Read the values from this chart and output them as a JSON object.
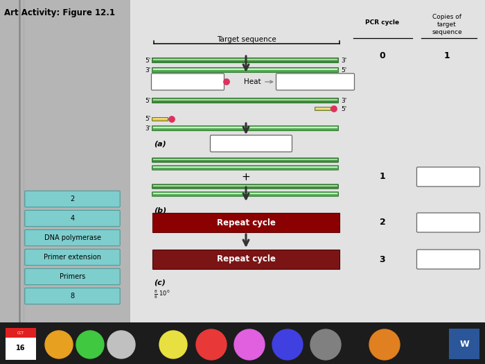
{
  "title": "Art Activity: Figure 12.1",
  "bg_color": "#d0cece",
  "sidebar_color": "#7ecece",
  "sidebar_labels": [
    "2",
    "4",
    "DNA polymerase",
    "Primer extension",
    "Primers",
    "8"
  ],
  "pcr_cycle_label": "PCR cycle",
  "copies_label": "Copies of\ntarget\nsequence",
  "target_sequence_label": "Target sequence",
  "heat_label": "Heat",
  "section_labels": [
    "(a)",
    "(b)",
    "(c)"
  ],
  "repeat_cycle_color": "#8b0000",
  "repeat_cycle_color2": "#7b1515",
  "repeat_cycle_text": "Repeat cycle",
  "dna_dark1": "#3a8c3a",
  "dna_light1": "#b0d8a0",
  "dna_dark2": "#4aaa4a",
  "dna_light2": "#d0ead0",
  "primer_color": "#e8c040",
  "ball_color": "#e03060"
}
